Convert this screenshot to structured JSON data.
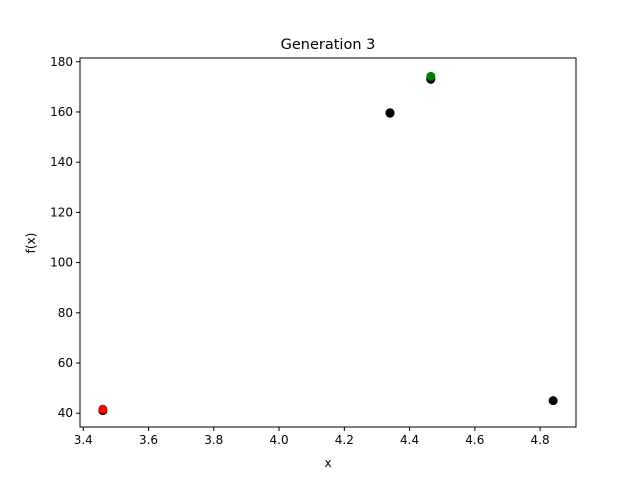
{
  "chart_data": {
    "type": "scatter",
    "title": "Generation 3",
    "xlabel": "x",
    "ylabel": "f(x)",
    "xlim": [
      3.39,
      4.91
    ],
    "ylim": [
      34.5,
      181.5
    ],
    "xticks": [
      3.4,
      3.6,
      3.8,
      4.0,
      4.2,
      4.4,
      4.6,
      4.8
    ],
    "xtick_labels": [
      "3.4",
      "3.6",
      "3.8",
      "4.0",
      "4.2",
      "4.4",
      "4.6",
      "4.8"
    ],
    "yticks": [
      40,
      60,
      80,
      100,
      120,
      140,
      160,
      180
    ],
    "ytick_labels": [
      "40",
      "60",
      "80",
      "100",
      "120",
      "140",
      "160",
      "180"
    ],
    "grid": false,
    "series": [
      {
        "color": "#000000",
        "points": [
          {
            "x": 4.34,
            "y": 159.7
          },
          {
            "x": 4.34,
            "y": 159.5
          },
          {
            "x": 4.465,
            "y": 173.3
          },
          {
            "x": 4.465,
            "y": 173.0
          },
          {
            "x": 4.84,
            "y": 45.0
          },
          {
            "x": 3.46,
            "y": 41.0
          }
        ]
      },
      {
        "color": "#ff0000",
        "points": [
          {
            "x": 3.46,
            "y": 41.6
          }
        ]
      },
      {
        "color": "#008000",
        "points": [
          {
            "x": 4.465,
            "y": 174.2
          }
        ]
      }
    ]
  }
}
